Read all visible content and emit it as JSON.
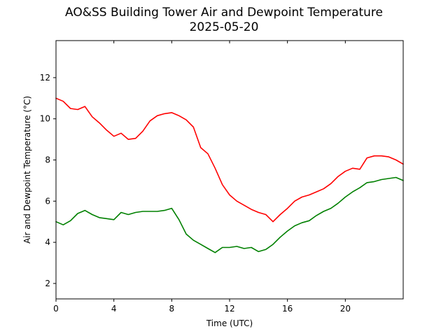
{
  "chart_data": {
    "type": "line",
    "title": "AO&SS Building Tower Air and Dewpoint Temperature",
    "subtitle": "2025-05-20",
    "xlabel": "Time (UTC)",
    "ylabel": "Air and Dewpoint Temperature (°C)",
    "xlim": [
      0,
      24
    ],
    "ylim": [
      1.25,
      13.8
    ],
    "x_ticks": [
      0,
      4,
      8,
      12,
      16,
      20
    ],
    "y_ticks": [
      2,
      4,
      6,
      8,
      10,
      12
    ],
    "grid": false,
    "legend": "none",
    "series": [
      {
        "color": "#ff0000",
        "x": [
          0,
          0.5,
          1,
          1.5,
          2,
          2.5,
          3,
          3.5,
          4,
          4.5,
          5,
          5.5,
          6,
          6.5,
          7,
          7.5,
          8,
          8.5,
          9,
          9.5,
          10,
          10.5,
          11,
          11.5,
          12,
          12.5,
          13,
          13.5,
          14,
          14.5,
          15,
          15.5,
          16,
          16.5,
          17,
          17.5,
          18,
          18.5,
          19,
          19.5,
          20,
          20.5,
          21,
          21.5,
          22,
          22.5,
          23,
          23.5,
          24
        ],
        "y": [
          11.0,
          10.85,
          10.5,
          10.45,
          10.6,
          10.1,
          9.8,
          9.45,
          9.15,
          9.3,
          9.0,
          9.05,
          9.4,
          9.9,
          10.15,
          10.25,
          10.3,
          10.15,
          9.95,
          9.6,
          8.6,
          8.3,
          7.6,
          6.8,
          6.3,
          6.0,
          5.8,
          5.6,
          5.45,
          5.35,
          5.0,
          5.35,
          5.65,
          6.0,
          6.2,
          6.3,
          6.45,
          6.6,
          6.85,
          7.2,
          7.45,
          7.6,
          7.55,
          8.1,
          8.2,
          8.2,
          8.15,
          8.0,
          7.8
        ]
      },
      {
        "color": "#008000",
        "x": [
          0,
          0.5,
          1,
          1.5,
          2,
          2.5,
          3,
          3.5,
          4,
          4.5,
          5,
          5.5,
          6,
          6.5,
          7,
          7.5,
          8,
          8.5,
          9,
          9.5,
          10,
          10.5,
          11,
          11.5,
          12,
          12.5,
          13,
          13.5,
          14,
          14.5,
          15,
          15.5,
          16,
          16.5,
          17,
          17.5,
          18,
          18.5,
          19,
          19.5,
          20,
          20.5,
          21,
          21.5,
          22,
          22.5,
          23,
          23.5,
          24
        ],
        "y": [
          5.0,
          4.85,
          5.05,
          5.4,
          5.55,
          5.35,
          5.2,
          5.15,
          5.1,
          5.45,
          5.35,
          5.45,
          5.5,
          5.5,
          5.5,
          5.55,
          5.65,
          5.1,
          4.4,
          4.1,
          3.9,
          3.7,
          3.5,
          3.75,
          3.75,
          3.8,
          3.7,
          3.75,
          3.55,
          3.65,
          3.9,
          4.25,
          4.55,
          4.8,
          4.95,
          5.05,
          5.3,
          5.5,
          5.65,
          5.9,
          6.2,
          6.45,
          6.65,
          6.9,
          6.95,
          7.05,
          7.1,
          7.15,
          7.0
        ]
      }
    ]
  }
}
